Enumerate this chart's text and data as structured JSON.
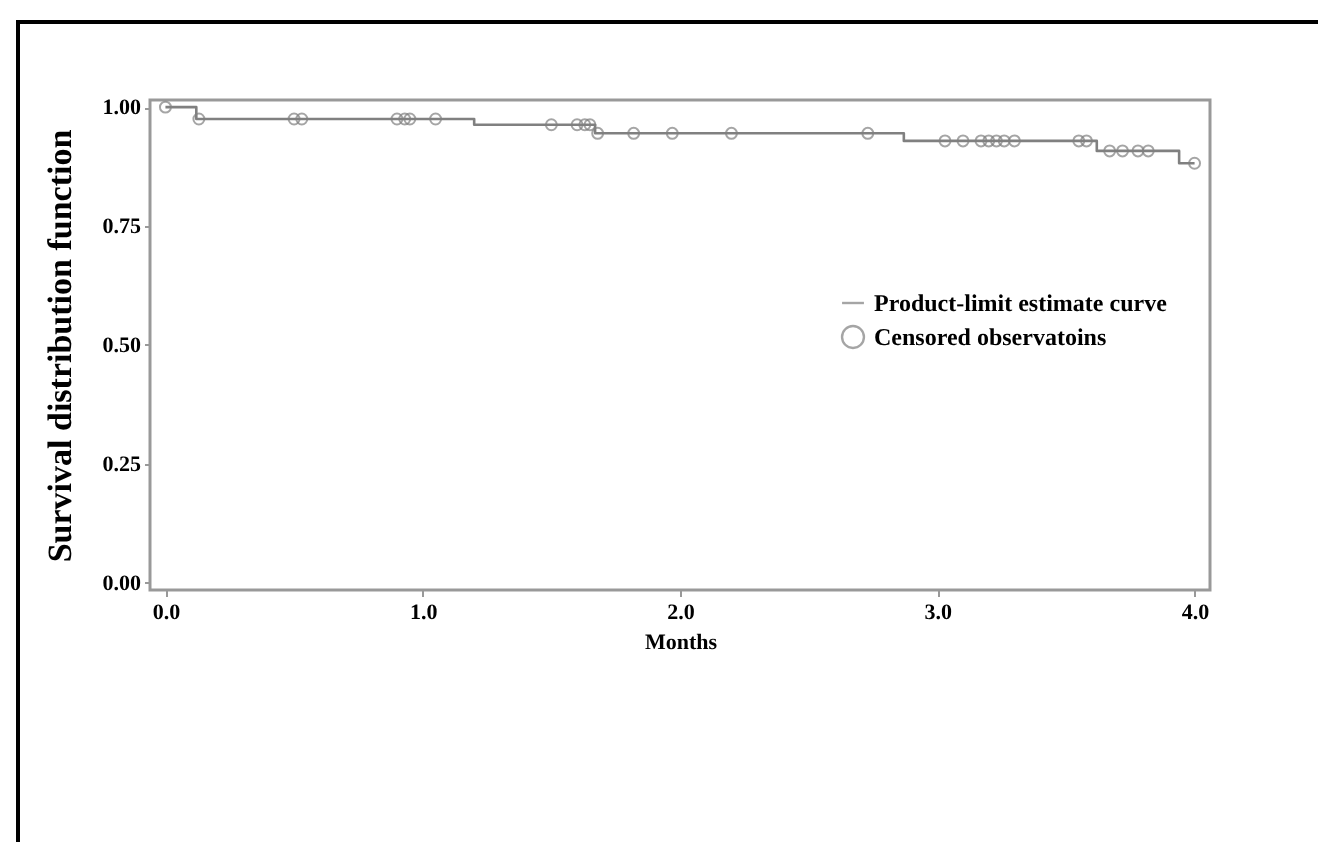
{
  "chart_data": {
    "type": "step",
    "xlabel": "Months",
    "ylabel": "Survival distribution function",
    "xlim": [
      -0.06,
      4.06
    ],
    "ylim": [
      -0.015,
      1.015
    ],
    "xticks": [
      {
        "value": 0,
        "label": "0.0"
      },
      {
        "value": 1,
        "label": "1.0"
      },
      {
        "value": 2,
        "label": "2.0"
      },
      {
        "value": 3,
        "label": "3.0"
      },
      {
        "value": 4,
        "label": "4.0"
      }
    ],
    "yticks": [
      {
        "value": 0,
        "label": "0.00"
      },
      {
        "value": 0.25,
        "label": "0.25"
      },
      {
        "value": 0.5,
        "label": "0.50"
      },
      {
        "value": 0.75,
        "label": "0.75"
      },
      {
        "value": 1,
        "label": "1.00"
      }
    ],
    "legend": "right",
    "grid": false,
    "series": [
      {
        "name": "Product-limit estimate curve",
        "type": "step",
        "color": "#808080",
        "line_style": "solid",
        "marker": "none",
        "x": [
          0,
          0.12,
          1.2,
          1.67,
          2.87,
          3.62,
          3.94,
          4.0
        ],
        "values": [
          1,
          0.975,
          0.963,
          0.945,
          0.929,
          0.908,
          0.882,
          0.882
        ]
      },
      {
        "name": "Censored observatoins",
        "type": "scatter",
        "color": "#808080",
        "marker": "circle",
        "x": [
          0,
          0.13,
          0.5,
          0.53,
          0.9,
          0.93,
          0.95,
          1.05,
          1.5,
          1.6,
          1.63,
          1.65,
          1.68,
          1.82,
          1.97,
          2.2,
          2.73,
          3.03,
          3.1,
          3.17,
          3.2,
          3.23,
          3.26,
          3.3,
          3.55,
          3.58,
          3.67,
          3.72,
          3.78,
          3.82,
          4.0
        ],
        "values": [
          1,
          0.975,
          0.975,
          0.975,
          0.975,
          0.975,
          0.975,
          0.975,
          0.963,
          0.963,
          0.963,
          0.963,
          0.945,
          0.945,
          0.945,
          0.945,
          0.945,
          0.929,
          0.929,
          0.929,
          0.929,
          0.929,
          0.929,
          0.929,
          0.929,
          0.929,
          0.908,
          0.908,
          0.908,
          0.908,
          0.882
        ]
      }
    ]
  }
}
